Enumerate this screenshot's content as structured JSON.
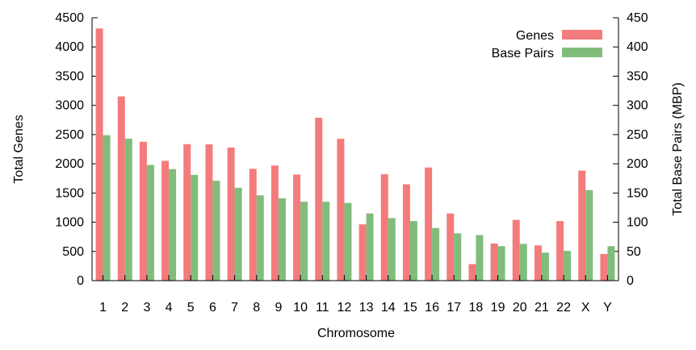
{
  "chart_data": {
    "type": "bar",
    "title": "",
    "xlabel": "Chromosome",
    "ylabel": "Total Genes",
    "y2label": "Total Base Pairs (MBP)",
    "ylim": [
      0,
      4500
    ],
    "y2lim": [
      0,
      450
    ],
    "yticks": [
      "0",
      "500",
      "1000",
      "1500",
      "2000",
      "2500",
      "3000",
      "3500",
      "4000",
      "4500"
    ],
    "y2ticks": [
      "0",
      "50",
      "100",
      "150",
      "200",
      "250",
      "300",
      "350",
      "400",
      "450"
    ],
    "categories": [
      "1",
      "2",
      "3",
      "4",
      "5",
      "6",
      "7",
      "8",
      "9",
      "10",
      "11",
      "12",
      "13",
      "14",
      "15",
      "16",
      "17",
      "18",
      "19",
      "20",
      "21",
      "22",
      "X",
      "Y"
    ],
    "grid": false,
    "legend_position": "top-right",
    "series": [
      {
        "name": "Genes",
        "axis": "left",
        "color": "#f47b7b",
        "values": [
          4316,
          3153,
          2377,
          2051,
          2336,
          2333,
          2278,
          1914,
          1970,
          1816,
          2788,
          2429,
          963,
          1821,
          1650,
          1937,
          1150,
          284,
          635,
          1040,
          603,
          1020,
          1884,
          457
        ]
      },
      {
        "name": "Base Pairs",
        "axis": "right",
        "color": "#80bd7c",
        "values": [
          249,
          243,
          198,
          191,
          181,
          171,
          159,
          146,
          141,
          135,
          135,
          133,
          115,
          107,
          102,
          90,
          81,
          78,
          59,
          63,
          48,
          51,
          155,
          59
        ]
      }
    ]
  }
}
